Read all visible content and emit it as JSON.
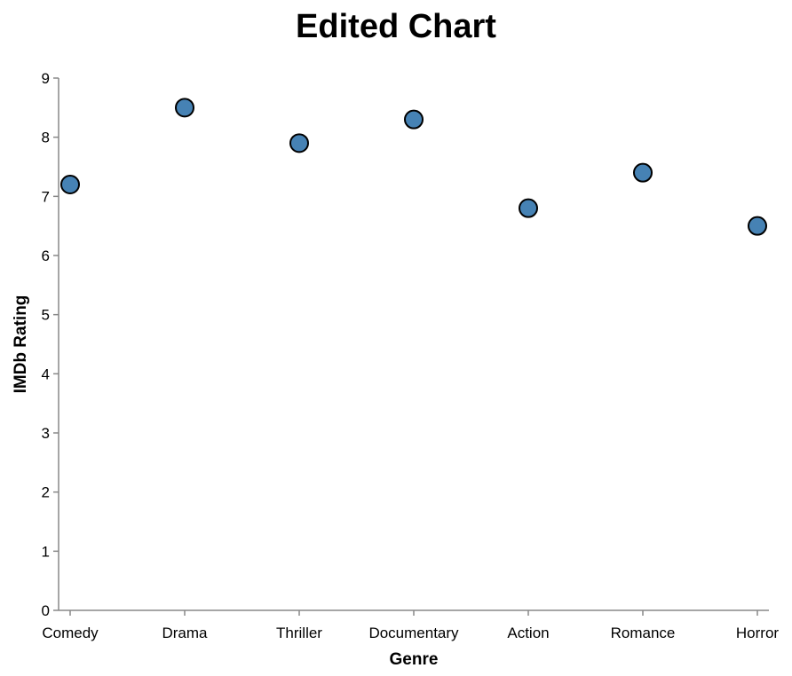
{
  "chart_data": {
    "type": "scatter",
    "title": "Edited Chart",
    "xlabel": "Genre",
    "ylabel": "IMDb Rating",
    "categories": [
      "Comedy",
      "Drama",
      "Thriller",
      "Documentary",
      "Action",
      "Romance",
      "Horror"
    ],
    "values": [
      7.2,
      8.5,
      7.9,
      8.3,
      6.8,
      7.4,
      6.5
    ],
    "ylim": [
      0,
      9
    ],
    "yticks": [
      0,
      1,
      2,
      3,
      4,
      5,
      6,
      7,
      8,
      9
    ],
    "grid": false,
    "legend": "none",
    "point_color": "#4682b4",
    "point_stroke": "#000000"
  }
}
